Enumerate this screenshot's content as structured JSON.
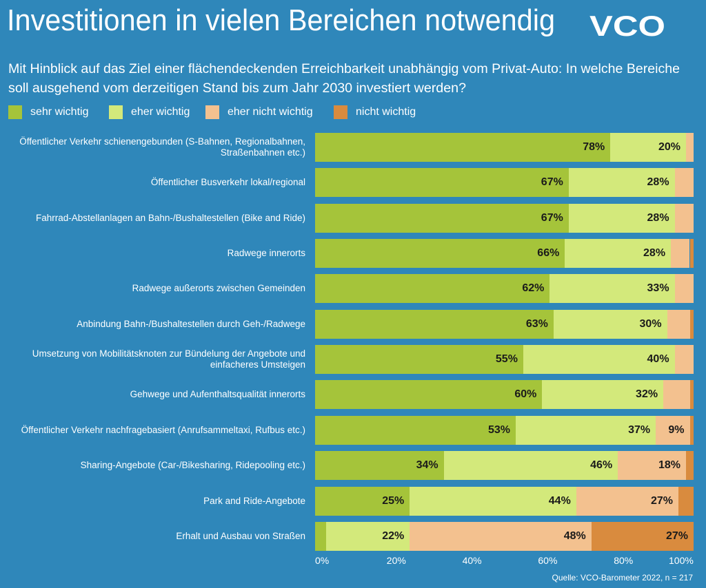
{
  "chart_data": {
    "type": "stacked-barh",
    "title": "Investitionen in vielen Bereichen notwendig",
    "logo": "VCO",
    "subtitle": [
      "Mit Hinblick auf das Ziel einer flächendeckenden Erreichbarkeit unabhängig vom Privat-Auto: In welche Bereiche",
      "soll ausgehend vom derzeitigen Stand bis zum Jahr 2030 investiert werden?"
    ],
    "source": "Quelle: VCO-Barometer 2022, n = 217",
    "categories": [
      "Öffentlicher Verkehr schienengebunden (S-Bahnen, Regionalbahnen, Straßenbahnen etc.)",
      "Öffentlicher Busverkehr lokal/regional",
      "Fahrrad-Abstellanlagen an Bahn-/Bushaltestellen (Bike and Ride)",
      "Radwege innerorts",
      "Radwege außerorts zwischen Gemeinden",
      "Anbindung Bahn-/Bushaltestellen durch Geh-/Radwege",
      "Umsetzung von Mobilitätsknoten zur Bündelung der Angebote und einfacheres Umsteigen",
      "Gehwege und Aufenthaltsqualität innerorts",
      "Öffentlicher Verkehr nachfragebasiert (Anrufsammeltaxi, Rufbus etc.)",
      "Sharing-Angebote (Car-/Bikesharing, Ridepooling etc.)",
      "Park and Ride-Angebote",
      "Erhalt und Ausbau von Straßen"
    ],
    "series": [
      {
        "name": "sehr wichtig",
        "color": "#a5c43a",
        "values": [
          78,
          67,
          67,
          66,
          62,
          63,
          55,
          60,
          53,
          34,
          25,
          3
        ],
        "value_labels": [
          "78%",
          "67%",
          "67%",
          "66%",
          "62%",
          "63%",
          "55%",
          "60%",
          "53%",
          "34%",
          "25%",
          null
        ]
      },
      {
        "name": "eher wichtig",
        "color": "#d3e97b",
        "values": [
          20,
          28,
          28,
          28,
          33,
          30,
          40,
          32,
          37,
          46,
          44,
          22
        ],
        "value_labels": [
          "20%",
          "28%",
          "28%",
          "28%",
          "33%",
          "30%",
          "40%",
          "32%",
          "37%",
          "46%",
          "44%",
          "22%"
        ]
      },
      {
        "name": "eher nicht wichtig",
        "color": "#f3c18f",
        "values": [
          2,
          5,
          5,
          5,
          5,
          6,
          5,
          7,
          9,
          18,
          27,
          48
        ],
        "value_labels": [
          null,
          null,
          null,
          null,
          null,
          null,
          null,
          null,
          "9%",
          "18%",
          "27%",
          "48%"
        ]
      },
      {
        "name": "nicht wichtig",
        "color": "#d98b3e",
        "values": [
          0,
          0,
          0,
          1,
          0,
          1,
          0,
          1,
          1,
          2,
          4,
          27
        ],
        "value_labels": [
          null,
          null,
          null,
          null,
          null,
          null,
          null,
          null,
          null,
          null,
          null,
          "27%"
        ]
      }
    ],
    "xlim": [
      0,
      100
    ],
    "xticks": [
      {
        "value": 0,
        "label": "0%"
      },
      {
        "value": 20,
        "label": "20%"
      },
      {
        "value": 40,
        "label": "40%"
      },
      {
        "value": 60,
        "label": "60%"
      },
      {
        "value": 80,
        "label": "80%"
      },
      {
        "value": 100,
        "label": "100%"
      }
    ]
  }
}
